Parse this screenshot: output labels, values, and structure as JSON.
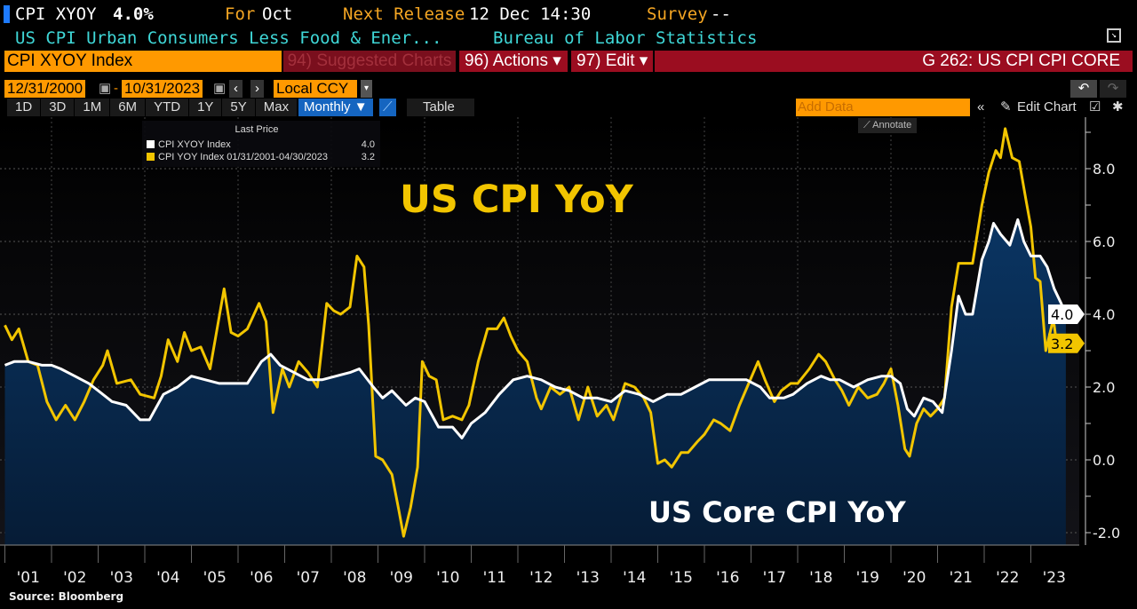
{
  "header": {
    "ticker": "CPI XYOY",
    "value": "4.0%",
    "for_label": "For",
    "for_value": "Oct",
    "next_release_label": "Next Release",
    "next_release_value": "12 Dec 14:30",
    "survey_label": "Survey",
    "survey_value": "--",
    "description": "US CPI Urban Consumers Less Food & Ener...",
    "source": "Bureau of Labor Statistics"
  },
  "command": {
    "security": "CPI XYOY Index",
    "suggested": "94) Suggested Charts",
    "actions": "96) Actions ▾",
    "edit": "97) Edit ▾",
    "title": "G 262: US CPI CPI CORE"
  },
  "range": {
    "start": "12/31/2000",
    "end": "10/31/2023",
    "currency": "Local CCY"
  },
  "toolbar": {
    "periods": [
      "1D",
      "3D",
      "1M",
      "6M",
      "YTD",
      "1Y",
      "5Y",
      "Max"
    ],
    "frequency": "Monthly ▼",
    "table": "Table",
    "add_data_placeholder": "Add Data",
    "edit_chart": "Edit Chart",
    "annotate": "Annotate"
  },
  "legend": {
    "header": "Last Price",
    "items": [
      {
        "label": "CPI XYOY Index",
        "value": "4.0",
        "color": "#ffffff"
      },
      {
        "label": "CPI YOY Index 01/31/2001-04/30/2023",
        "value": "3.2",
        "color": "#f2c500"
      }
    ]
  },
  "footer": {
    "source": "Source: Bloomberg"
  },
  "chart_data": {
    "type": "line",
    "annotations": [
      "US CPI YoY",
      "US Core CPI YoY"
    ],
    "x_tick_labels": [
      "'01",
      "'02",
      "'03",
      "'04",
      "'05",
      "'06",
      "'07",
      "'08",
      "'09",
      "'10",
      "'11",
      "'12",
      "'13",
      "'14",
      "'15",
      "'16",
      "'17",
      "'18",
      "'19",
      "'20",
      "'21",
      "'22",
      "'23"
    ],
    "y_tick_labels": [
      "8.0",
      "6.0",
      "4.0",
      "2.0",
      "0.0",
      "-2.0"
    ],
    "ylim": [
      -2.3,
      9.3
    ],
    "xlim": [
      2001.0,
      2023.85
    ],
    "grid": true,
    "legend": "top-left",
    "last_value_labels": [
      "4.0",
      "3.2"
    ],
    "series": [
      {
        "name": "CPI XYOY Index",
        "color": "#ffffff",
        "fill": "#07274a",
        "points": [
          [
            2001.0,
            2.6
          ],
          [
            2001.2,
            2.7
          ],
          [
            2001.5,
            2.7
          ],
          [
            2001.8,
            2.6
          ],
          [
            2002.0,
            2.6
          ],
          [
            2002.2,
            2.5
          ],
          [
            2002.5,
            2.3
          ],
          [
            2002.8,
            2.1
          ],
          [
            2003.0,
            1.9
          ],
          [
            2003.3,
            1.6
          ],
          [
            2003.6,
            1.5
          ],
          [
            2003.9,
            1.1
          ],
          [
            2004.1,
            1.1
          ],
          [
            2004.4,
            1.8
          ],
          [
            2004.7,
            2.0
          ],
          [
            2005.0,
            2.3
          ],
          [
            2005.3,
            2.2
          ],
          [
            2005.6,
            2.1
          ],
          [
            2005.9,
            2.1
          ],
          [
            2006.2,
            2.1
          ],
          [
            2006.5,
            2.7
          ],
          [
            2006.7,
            2.9
          ],
          [
            2006.9,
            2.6
          ],
          [
            2007.2,
            2.4
          ],
          [
            2007.5,
            2.2
          ],
          [
            2007.8,
            2.2
          ],
          [
            2008.1,
            2.3
          ],
          [
            2008.4,
            2.4
          ],
          [
            2008.6,
            2.5
          ],
          [
            2008.9,
            2.0
          ],
          [
            2009.1,
            1.7
          ],
          [
            2009.3,
            1.9
          ],
          [
            2009.6,
            1.5
          ],
          [
            2009.8,
            1.7
          ],
          [
            2010.0,
            1.6
          ],
          [
            2010.3,
            0.9
          ],
          [
            2010.6,
            0.9
          ],
          [
            2010.8,
            0.6
          ],
          [
            2011.0,
            1.0
          ],
          [
            2011.3,
            1.3
          ],
          [
            2011.6,
            1.8
          ],
          [
            2011.9,
            2.2
          ],
          [
            2012.2,
            2.3
          ],
          [
            2012.5,
            2.2
          ],
          [
            2012.8,
            2.0
          ],
          [
            2013.1,
            1.9
          ],
          [
            2013.4,
            1.7
          ],
          [
            2013.7,
            1.7
          ],
          [
            2014.0,
            1.6
          ],
          [
            2014.3,
            1.9
          ],
          [
            2014.6,
            1.8
          ],
          [
            2014.9,
            1.6
          ],
          [
            2015.2,
            1.8
          ],
          [
            2015.5,
            1.8
          ],
          [
            2015.8,
            2.0
          ],
          [
            2016.1,
            2.2
          ],
          [
            2016.4,
            2.2
          ],
          [
            2016.7,
            2.2
          ],
          [
            2016.9,
            2.2
          ],
          [
            2017.2,
            2.0
          ],
          [
            2017.4,
            1.7
          ],
          [
            2017.7,
            1.7
          ],
          [
            2017.9,
            1.8
          ],
          [
            2018.2,
            2.1
          ],
          [
            2018.5,
            2.3
          ],
          [
            2018.7,
            2.2
          ],
          [
            2018.9,
            2.2
          ],
          [
            2019.2,
            2.0
          ],
          [
            2019.5,
            2.2
          ],
          [
            2019.8,
            2.3
          ],
          [
            2020.0,
            2.3
          ],
          [
            2020.2,
            2.1
          ],
          [
            2020.35,
            1.4
          ],
          [
            2020.5,
            1.2
          ],
          [
            2020.7,
            1.7
          ],
          [
            2020.9,
            1.6
          ],
          [
            2021.1,
            1.3
          ],
          [
            2021.3,
            3.0
          ],
          [
            2021.45,
            4.5
          ],
          [
            2021.6,
            4.0
          ],
          [
            2021.75,
            4.0
          ],
          [
            2021.95,
            5.5
          ],
          [
            2022.1,
            6.0
          ],
          [
            2022.2,
            6.5
          ],
          [
            2022.35,
            6.2
          ],
          [
            2022.55,
            5.9
          ],
          [
            2022.72,
            6.6
          ],
          [
            2022.85,
            6.0
          ],
          [
            2023.0,
            5.6
          ],
          [
            2023.2,
            5.6
          ],
          [
            2023.35,
            5.3
          ],
          [
            2023.5,
            4.7
          ],
          [
            2023.65,
            4.3
          ],
          [
            2023.75,
            4.0
          ]
        ]
      },
      {
        "name": "CPI YOY Index 01/31/2001-04/30/2023",
        "color": "#f2c500",
        "points": [
          [
            2001.0,
            3.7
          ],
          [
            2001.15,
            3.3
          ],
          [
            2001.3,
            3.6
          ],
          [
            2001.5,
            2.7
          ],
          [
            2001.7,
            2.6
          ],
          [
            2001.9,
            1.6
          ],
          [
            2002.1,
            1.1
          ],
          [
            2002.3,
            1.5
          ],
          [
            2002.5,
            1.1
          ],
          [
            2002.7,
            1.6
          ],
          [
            2002.9,
            2.2
          ],
          [
            2003.1,
            2.6
          ],
          [
            2003.2,
            3.0
          ],
          [
            2003.4,
            2.1
          ],
          [
            2003.7,
            2.2
          ],
          [
            2003.9,
            1.8
          ],
          [
            2004.2,
            1.7
          ],
          [
            2004.35,
            2.3
          ],
          [
            2004.5,
            3.3
          ],
          [
            2004.7,
            2.7
          ],
          [
            2004.85,
            3.5
          ],
          [
            2005.0,
            3.0
          ],
          [
            2005.2,
            3.1
          ],
          [
            2005.4,
            2.5
          ],
          [
            2005.55,
            3.6
          ],
          [
            2005.7,
            4.7
          ],
          [
            2005.85,
            3.5
          ],
          [
            2006.0,
            3.4
          ],
          [
            2006.2,
            3.6
          ],
          [
            2006.45,
            4.3
          ],
          [
            2006.6,
            3.8
          ],
          [
            2006.75,
            1.3
          ],
          [
            2006.95,
            2.5
          ],
          [
            2007.1,
            2.0
          ],
          [
            2007.3,
            2.7
          ],
          [
            2007.5,
            2.4
          ],
          [
            2007.7,
            2.0
          ],
          [
            2007.9,
            4.3
          ],
          [
            2008.05,
            4.1
          ],
          [
            2008.2,
            4.0
          ],
          [
            2008.4,
            4.2
          ],
          [
            2008.55,
            5.6
          ],
          [
            2008.7,
            5.3
          ],
          [
            2008.8,
            3.7
          ],
          [
            2008.95,
            0.1
          ],
          [
            2009.1,
            0.0
          ],
          [
            2009.3,
            -0.4
          ],
          [
            2009.45,
            -1.4
          ],
          [
            2009.55,
            -2.1
          ],
          [
            2009.7,
            -1.3
          ],
          [
            2009.85,
            -0.2
          ],
          [
            2009.95,
            2.7
          ],
          [
            2010.1,
            2.3
          ],
          [
            2010.25,
            2.2
          ],
          [
            2010.4,
            1.1
          ],
          [
            2010.6,
            1.2
          ],
          [
            2010.8,
            1.1
          ],
          [
            2010.95,
            1.5
          ],
          [
            2011.15,
            2.7
          ],
          [
            2011.35,
            3.6
          ],
          [
            2011.55,
            3.6
          ],
          [
            2011.7,
            3.9
          ],
          [
            2011.85,
            3.4
          ],
          [
            2012.0,
            3.0
          ],
          [
            2012.2,
            2.7
          ],
          [
            2012.4,
            1.7
          ],
          [
            2012.5,
            1.4
          ],
          [
            2012.7,
            2.0
          ],
          [
            2012.9,
            1.8
          ],
          [
            2013.1,
            2.0
          ],
          [
            2013.3,
            1.1
          ],
          [
            2013.5,
            2.0
          ],
          [
            2013.7,
            1.2
          ],
          [
            2013.9,
            1.5
          ],
          [
            2014.05,
            1.1
          ],
          [
            2014.3,
            2.1
          ],
          [
            2014.5,
            2.0
          ],
          [
            2014.7,
            1.7
          ],
          [
            2014.85,
            1.3
          ],
          [
            2015.0,
            -0.1
          ],
          [
            2015.15,
            0.0
          ],
          [
            2015.3,
            -0.2
          ],
          [
            2015.5,
            0.2
          ],
          [
            2015.65,
            0.2
          ],
          [
            2015.85,
            0.5
          ],
          [
            2016.0,
            0.7
          ],
          [
            2016.2,
            1.1
          ],
          [
            2016.35,
            1.0
          ],
          [
            2016.55,
            0.8
          ],
          [
            2016.75,
            1.5
          ],
          [
            2016.95,
            2.1
          ],
          [
            2017.15,
            2.7
          ],
          [
            2017.3,
            2.2
          ],
          [
            2017.5,
            1.6
          ],
          [
            2017.65,
            1.9
          ],
          [
            2017.85,
            2.1
          ],
          [
            2018.0,
            2.1
          ],
          [
            2018.25,
            2.5
          ],
          [
            2018.45,
            2.9
          ],
          [
            2018.6,
            2.7
          ],
          [
            2018.8,
            2.2
          ],
          [
            2018.95,
            1.9
          ],
          [
            2019.1,
            1.5
          ],
          [
            2019.3,
            2.0
          ],
          [
            2019.5,
            1.7
          ],
          [
            2019.7,
            1.8
          ],
          [
            2019.85,
            2.1
          ],
          [
            2020.0,
            2.5
          ],
          [
            2020.15,
            1.5
          ],
          [
            2020.3,
            0.3
          ],
          [
            2020.4,
            0.1
          ],
          [
            2020.55,
            1.0
          ],
          [
            2020.7,
            1.4
          ],
          [
            2020.85,
            1.2
          ],
          [
            2021.0,
            1.4
          ],
          [
            2021.15,
            1.7
          ],
          [
            2021.3,
            4.2
          ],
          [
            2021.45,
            5.4
          ],
          [
            2021.6,
            5.4
          ],
          [
            2021.75,
            5.4
          ],
          [
            2021.95,
            7.0
          ],
          [
            2022.1,
            7.9
          ],
          [
            2022.25,
            8.5
          ],
          [
            2022.35,
            8.3
          ],
          [
            2022.45,
            9.1
          ],
          [
            2022.6,
            8.3
          ],
          [
            2022.75,
            8.2
          ],
          [
            2022.9,
            7.1
          ],
          [
            2023.0,
            6.4
          ],
          [
            2023.1,
            5.0
          ],
          [
            2023.2,
            4.9
          ],
          [
            2023.32,
            3.0
          ],
          [
            2023.45,
            3.7
          ],
          [
            2023.5,
            3.7
          ],
          [
            2023.55,
            3.2
          ]
        ]
      }
    ]
  }
}
